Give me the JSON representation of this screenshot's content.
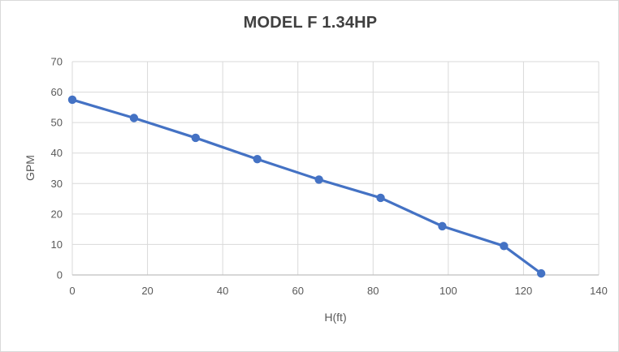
{
  "chart": {
    "title": "MODEL F 1.34HP",
    "ylabel": "GPM",
    "xlabel": "H(ft)"
  },
  "chart_data": {
    "type": "line",
    "title": "MODEL F 1.34HP",
    "xlabel": "H(ft)",
    "ylabel": "GPM",
    "x": [
      0,
      16.4,
      32.8,
      49.2,
      65.6,
      82,
      98.4,
      114.8,
      124.7
    ],
    "y": [
      57.5,
      51.5,
      45,
      38,
      31.3,
      25.3,
      16,
      9.5,
      0.5
    ],
    "xlim": [
      0,
      140
    ],
    "ylim": [
      0,
      70
    ],
    "x_ticks": [
      0,
      20,
      40,
      60,
      80,
      100,
      120,
      140
    ],
    "y_ticks": [
      0,
      10,
      20,
      30,
      40,
      50,
      60,
      70
    ],
    "grid": true,
    "legend": false,
    "line_color": "#4472C4",
    "marker": "circle"
  },
  "colors": {
    "accent": "#4472C4",
    "title_text": "#404040",
    "tick_label": "#595959",
    "gridline": "#D9D9D9",
    "axis_line": "#BFBFBF",
    "frame_border": "#D9D9D9",
    "background": "#FFFFFF"
  }
}
